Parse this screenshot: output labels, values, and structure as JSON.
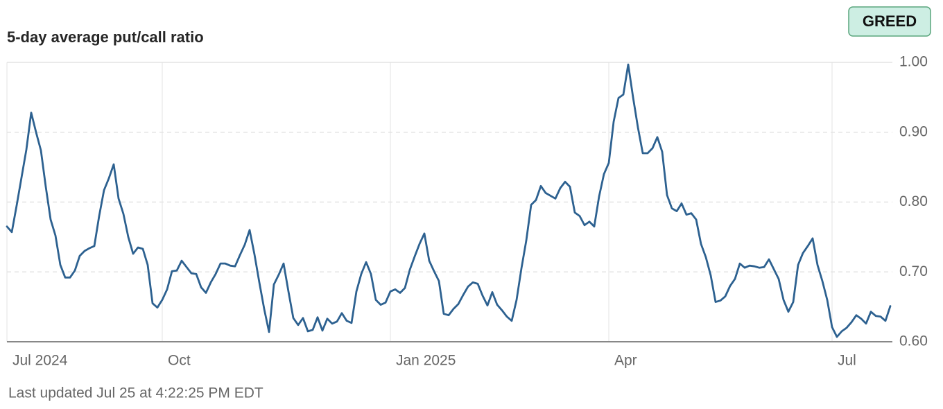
{
  "chart_data": {
    "type": "line",
    "title": "5-day average put/call ratio",
    "badge": "GREED",
    "footnote": "Last updated Jul 25 at 4:22:25 PM EDT",
    "categories": [
      "Jul 2024",
      null,
      null,
      null,
      null,
      null,
      null,
      null,
      null,
      null,
      null,
      null,
      null,
      null,
      null,
      null,
      null,
      null,
      null,
      null,
      null,
      null,
      null,
      null,
      null,
      null,
      null,
      null,
      null,
      null,
      null,
      null,
      "Oct",
      null,
      null,
      null,
      null,
      null,
      null,
      null,
      null,
      null,
      null,
      null,
      null,
      null,
      null,
      null,
      null,
      null,
      null,
      null,
      null,
      null,
      null,
      null,
      null,
      null,
      null,
      null,
      null,
      null,
      null,
      null,
      null,
      null,
      null,
      null,
      null,
      null,
      null,
      null,
      null,
      null,
      null,
      null,
      null,
      null,
      null,
      "Jan 2025",
      null,
      null,
      null,
      null,
      null,
      null,
      null,
      null,
      null,
      null,
      null,
      null,
      null,
      null,
      null,
      null,
      null,
      null,
      null,
      null,
      null,
      null,
      null,
      null,
      null,
      null,
      null,
      null,
      null,
      null,
      null,
      null,
      null,
      null,
      null,
      null,
      null,
      null,
      null,
      null,
      null,
      null,
      null,
      null,
      "Apr",
      null,
      null,
      null,
      null,
      null,
      null,
      null,
      null,
      null,
      null,
      null,
      null,
      null,
      null,
      null,
      null,
      null,
      null,
      null,
      null,
      null,
      null,
      null,
      null,
      null,
      null,
      null,
      null,
      null,
      null,
      null,
      null,
      null,
      null,
      null,
      null,
      null,
      null,
      null,
      null,
      null,
      null,
      null,
      null,
      null,
      "Jul",
      null,
      null,
      null,
      null,
      null,
      null,
      null,
      null,
      null,
      null,
      null,
      null
    ],
    "values": [
      0.765,
      0.757,
      0.795,
      0.835,
      0.875,
      0.928,
      0.9,
      0.874,
      0.822,
      0.775,
      0.752,
      0.71,
      0.692,
      0.692,
      0.702,
      0.723,
      0.73,
      0.734,
      0.737,
      0.78,
      0.817,
      0.834,
      0.854,
      0.805,
      0.783,
      0.75,
      0.726,
      0.735,
      0.733,
      0.71,
      0.655,
      0.649,
      0.66,
      0.675,
      0.701,
      0.702,
      0.716,
      0.707,
      0.698,
      0.697,
      0.678,
      0.67,
      0.685,
      0.697,
      0.712,
      0.712,
      0.709,
      0.708,
      0.724,
      0.739,
      0.76,
      0.725,
      0.685,
      0.647,
      0.614,
      0.682,
      0.696,
      0.712,
      0.672,
      0.634,
      0.624,
      0.634,
      0.615,
      0.617,
      0.635,
      0.616,
      0.633,
      0.626,
      0.629,
      0.641,
      0.63,
      0.627,
      0.672,
      0.697,
      0.714,
      0.697,
      0.66,
      0.653,
      0.656,
      0.672,
      0.675,
      0.67,
      0.677,
      0.703,
      0.722,
      0.74,
      0.755,
      0.716,
      0.701,
      0.687,
      0.64,
      0.638,
      0.647,
      0.654,
      0.667,
      0.679,
      0.685,
      0.683,
      0.666,
      0.652,
      0.671,
      0.653,
      0.645,
      0.636,
      0.63,
      0.66,
      0.705,
      0.745,
      0.796,
      0.803,
      0.823,
      0.813,
      0.809,
      0.805,
      0.82,
      0.829,
      0.822,
      0.785,
      0.78,
      0.767,
      0.772,
      0.765,
      0.808,
      0.84,
      0.856,
      0.915,
      0.949,
      0.954,
      0.997,
      0.95,
      0.907,
      0.87,
      0.87,
      0.877,
      0.893,
      0.872,
      0.81,
      0.791,
      0.787,
      0.798,
      0.782,
      0.784,
      0.775,
      0.74,
      0.721,
      0.695,
      0.657,
      0.659,
      0.665,
      0.68,
      0.69,
      0.712,
      0.706,
      0.709,
      0.708,
      0.706,
      0.707,
      0.718,
      0.704,
      0.69,
      0.66,
      0.643,
      0.657,
      0.71,
      0.727,
      0.737,
      0.748,
      0.71,
      0.687,
      0.66,
      0.621,
      0.607,
      0.615,
      0.62,
      0.628,
      0.638,
      0.633,
      0.626,
      0.643,
      0.637,
      0.636,
      0.63,
      0.651
    ],
    "color": "#2d6190",
    "ylim": [
      0.6,
      1.0
    ],
    "yticks": [
      {
        "value": 0.6,
        "label": "0.60"
      },
      {
        "value": 0.7,
        "label": "0.70"
      },
      {
        "value": 0.8,
        "label": "0.80"
      },
      {
        "value": 0.9,
        "label": "0.90"
      },
      {
        "value": 1.0,
        "label": "1.00"
      }
    ],
    "grid": true
  }
}
